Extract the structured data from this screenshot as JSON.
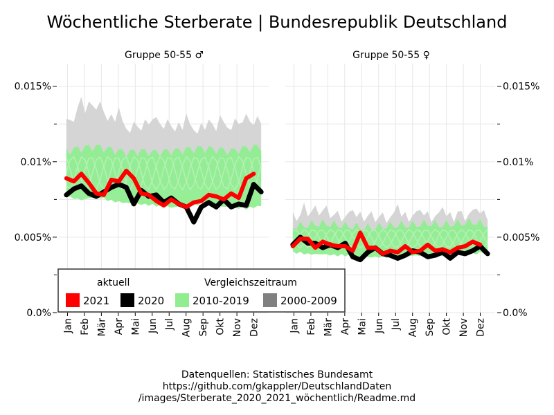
{
  "title": "Wöchentliche Sterberate | Bundesrepublik Deutschland",
  "colors": {
    "y2021": "#ff0000",
    "y2020": "#000000",
    "range2010_2019": "#90ee90",
    "range2000_2009": "#d3d3d3",
    "legend2000_2009": "#808080",
    "grid": "#e6e6e6"
  },
  "legend": {
    "group1_title": "aktuell",
    "group2_title": "Vergleichszeitraum",
    "items": [
      {
        "label": "2021",
        "color": "#ff0000"
      },
      {
        "label": "2020",
        "color": "#000000"
      },
      {
        "label": "2010-2019",
        "color": "#90ee90"
      },
      {
        "label": "2000-2009",
        "color": "#808080"
      }
    ]
  },
  "caption": {
    "line1": "Datenquellen: Statistisches Bundesamt",
    "line2": "https://github.com/gkappler/DeutschlandDaten",
    "line3": "/images/Sterberate_2020_2021_wöchentlich/Readme.md"
  },
  "chart_data": [
    {
      "type": "area",
      "title": "Gruppe 50-55 ♂",
      "x_tick_labels": [
        "Jan",
        "Feb",
        "Mär",
        "Apr",
        "Mai",
        "Jun",
        "Jul",
        "Aug",
        "Sep",
        "Okt",
        "Nov",
        "Dez"
      ],
      "y_tick_labels": [
        "0.0%",
        "0.005%",
        "0.01%",
        "0.015%"
      ],
      "y_ticks": [
        0,
        0.005,
        0.01,
        0.015
      ],
      "ylim": [
        0,
        0.0165
      ],
      "xlim": [
        -2,
        54
      ],
      "grid": true,
      "y_axis_side": "left",
      "series": [
        {
          "name": "2000-2009",
          "x": [
            0,
            4,
            8,
            12,
            16,
            20,
            24,
            28,
            32,
            36,
            40,
            44,
            48,
            52
          ],
          "low": [
            0.0088,
            0.0089,
            0.0088,
            0.0087,
            0.0086,
            0.0085,
            0.0085,
            0.0084,
            0.0085,
            0.0085,
            0.0085,
            0.0086,
            0.0087,
            0.0088
          ],
          "high": [
            0.0125,
            0.0135,
            0.0138,
            0.0128,
            0.0122,
            0.0124,
            0.0126,
            0.0124,
            0.0121,
            0.0122,
            0.0121,
            0.0124,
            0.0128,
            0.0126
          ],
          "peaks": [
            [
              4,
              0.0143
            ],
            [
              9,
              0.014
            ],
            [
              14,
              0.0136
            ],
            [
              23,
              0.0128
            ],
            [
              32,
              0.0132
            ],
            [
              38,
              0.0128
            ],
            [
              41,
              0.0131
            ],
            [
              47,
              0.0126
            ]
          ]
        },
        {
          "name": "2010-2019",
          "x": [
            0,
            4,
            8,
            12,
            16,
            20,
            24,
            28,
            32,
            36,
            40,
            44,
            48,
            52
          ],
          "low": [
            0.0078,
            0.0076,
            0.0078,
            0.0075,
            0.0074,
            0.0073,
            0.0072,
            0.0071,
            0.0072,
            0.0073,
            0.0072,
            0.0071,
            0.007,
            0.0072
          ],
          "high": [
            0.0107,
            0.0109,
            0.011,
            0.0108,
            0.0106,
            0.0107,
            0.0106,
            0.0107,
            0.0108,
            0.0109,
            0.0108,
            0.0107,
            0.0109,
            0.011
          ]
        },
        {
          "name": "2020",
          "x": [
            0,
            2,
            4,
            6,
            8,
            10,
            12,
            14,
            16,
            18,
            20,
            22,
            24,
            26,
            28,
            30,
            32,
            34,
            36,
            38,
            40,
            42,
            44,
            46,
            48,
            50,
            52
          ],
          "y": [
            0.0078,
            0.0082,
            0.0084,
            0.0079,
            0.0077,
            0.008,
            0.0083,
            0.0085,
            0.0083,
            0.0072,
            0.0081,
            0.0077,
            0.0078,
            0.0073,
            0.0076,
            0.0072,
            0.007,
            0.006,
            0.007,
            0.0073,
            0.007,
            0.0075,
            0.007,
            0.0072,
            0.0071,
            0.0085,
            0.008
          ]
        },
        {
          "name": "2021",
          "x": [
            0,
            2,
            4,
            6,
            8,
            10,
            12,
            14,
            16,
            18,
            20,
            22,
            24,
            26,
            28,
            30,
            32,
            34,
            36,
            38,
            40,
            42,
            44,
            46,
            48,
            50
          ],
          "y": [
            0.0089,
            0.0087,
            0.0092,
            0.0086,
            0.0079,
            0.0078,
            0.0088,
            0.0087,
            0.0094,
            0.0089,
            0.0079,
            0.0078,
            0.0074,
            0.0071,
            0.0075,
            0.0072,
            0.007,
            0.0073,
            0.0074,
            0.0078,
            0.0077,
            0.0075,
            0.0079,
            0.0076,
            0.0089,
            0.0092
          ]
        }
      ]
    },
    {
      "type": "area",
      "title": "Gruppe 50-55 ♀",
      "x_tick_labels": [
        "Jan",
        "Feb",
        "Mär",
        "Apr",
        "Mai",
        "Jun",
        "Jul",
        "Aug",
        "Sep",
        "Okt",
        "Nov",
        "Dez"
      ],
      "y_tick_labels": [
        "0.0%",
        "0.005%",
        "0.01%",
        "0.015%"
      ],
      "y_ticks": [
        0,
        0.005,
        0.01,
        0.015
      ],
      "ylim": [
        0,
        0.0165
      ],
      "xlim": [
        -2,
        54
      ],
      "grid": true,
      "y_axis_side": "right",
      "series": [
        {
          "name": "2000-2009",
          "x": [
            0,
            4,
            8,
            12,
            16,
            20,
            24,
            28,
            32,
            36,
            40,
            44,
            48,
            52
          ],
          "low": [
            0.0053,
            0.0052,
            0.0052,
            0.0051,
            0.0051,
            0.005,
            0.005,
            0.005,
            0.0051,
            0.0051,
            0.0051,
            0.0052,
            0.0052,
            0.0053
          ],
          "high": [
            0.0063,
            0.0067,
            0.0068,
            0.0064,
            0.0063,
            0.0064,
            0.0063,
            0.0063,
            0.0064,
            0.0064,
            0.0063,
            0.0064,
            0.0065,
            0.0065
          ],
          "peaks": [
            [
              3,
              0.0073
            ],
            [
              9,
              0.0071
            ],
            [
              16,
              0.0068
            ],
            [
              28,
              0.0072
            ],
            [
              34,
              0.0068
            ],
            [
              40,
              0.007
            ],
            [
              44,
              0.0067
            ],
            [
              49,
              0.0069
            ]
          ]
        },
        {
          "name": "2010-2019",
          "x": [
            0,
            4,
            8,
            12,
            16,
            20,
            24,
            28,
            32,
            36,
            40,
            44,
            48,
            52
          ],
          "low": [
            0.0041,
            0.004,
            0.004,
            0.0039,
            0.0039,
            0.0038,
            0.0038,
            0.0038,
            0.0039,
            0.0039,
            0.0039,
            0.004,
            0.004,
            0.0041
          ],
          "high": [
            0.0057,
            0.0058,
            0.0059,
            0.0058,
            0.0057,
            0.0056,
            0.0057,
            0.0058,
            0.0058,
            0.0059,
            0.0058,
            0.0059,
            0.006,
            0.0058
          ]
        },
        {
          "name": "2020",
          "x": [
            0,
            2,
            4,
            6,
            8,
            10,
            12,
            14,
            16,
            18,
            20,
            22,
            24,
            26,
            28,
            30,
            32,
            34,
            36,
            38,
            40,
            42,
            44,
            46,
            48,
            50,
            52
          ],
          "y": [
            0.0045,
            0.005,
            0.0046,
            0.0046,
            0.0043,
            0.0045,
            0.0043,
            0.0046,
            0.0037,
            0.0035,
            0.004,
            0.0043,
            0.0039,
            0.0038,
            0.0036,
            0.0038,
            0.0041,
            0.004,
            0.0037,
            0.0038,
            0.004,
            0.0036,
            0.004,
            0.0039,
            0.0041,
            0.0044,
            0.0039
          ]
        },
        {
          "name": "2021",
          "x": [
            0,
            2,
            4,
            6,
            8,
            10,
            12,
            14,
            16,
            18,
            20,
            22,
            24,
            26,
            28,
            30,
            32,
            34,
            36,
            38,
            40,
            42,
            44,
            46,
            48,
            50
          ],
          "y": [
            0.0044,
            0.0049,
            0.0049,
            0.0043,
            0.0047,
            0.0045,
            0.0044,
            0.0044,
            0.0041,
            0.0053,
            0.0043,
            0.0043,
            0.0039,
            0.0041,
            0.004,
            0.0044,
            0.004,
            0.0041,
            0.0045,
            0.0041,
            0.0042,
            0.004,
            0.0043,
            0.0044,
            0.0047,
            0.0045
          ]
        }
      ]
    }
  ]
}
